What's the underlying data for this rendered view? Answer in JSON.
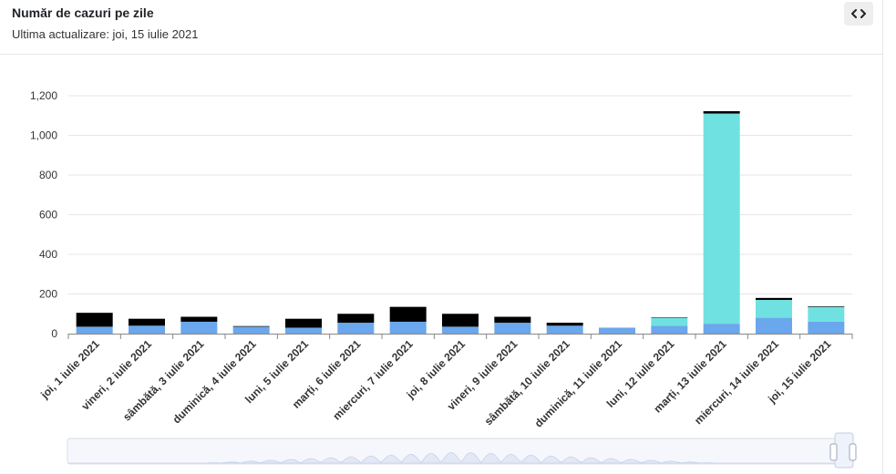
{
  "header": {
    "title": "Număr de cazuri pe zile",
    "subtitle": "Ultima actualizare: joi, 15 iulie 2021",
    "embed_icon": "code-icon"
  },
  "colors": {
    "blue": "#6aa7ec",
    "cyan": "#70e1e1",
    "black": "#000000",
    "grid": "#e6e6e6",
    "axis": "#333333"
  },
  "chart_data": {
    "type": "bar",
    "stacked": true,
    "title": "",
    "xlabel": "",
    "ylabel": "",
    "ylim": [
      0,
      1200
    ],
    "yticks": [
      0,
      200,
      400,
      600,
      800,
      1000,
      1200
    ],
    "ytick_labels": [
      "0",
      "200",
      "400",
      "600",
      "800",
      "1,000",
      "1,200"
    ],
    "categories": [
      "joi, 1 iulie 2021",
      "vineri, 2 iulie 2021",
      "sâmbătă, 3 iulie 2021",
      "duminică, 4 iulie 2021",
      "luni, 5 iulie 2021",
      "marți, 6 iulie 2021",
      "miercuri, 7 iulie 2021",
      "joi, 8 iulie 2021",
      "vineri, 9 iulie 2021",
      "sâmbătă, 10 iulie 2021",
      "duminică, 11 iulie 2021",
      "luni, 12 iulie 2021",
      "marți, 13 iulie 2021",
      "miercuri, 14 iulie 2021",
      "joi, 15 iulie 2021"
    ],
    "series": [
      {
        "name": "series-blue",
        "color": "#6aa7ec",
        "values": [
          35,
          40,
          60,
          35,
          30,
          55,
          60,
          35,
          55,
          40,
          30,
          40,
          50,
          80,
          60
        ]
      },
      {
        "name": "series-cyan",
        "color": "#70e1e1",
        "values": [
          0,
          0,
          0,
          0,
          0,
          0,
          0,
          0,
          0,
          0,
          0,
          40,
          1060,
          90,
          75
        ]
      },
      {
        "name": "series-black",
        "color": "#000000",
        "values": [
          70,
          35,
          25,
          3,
          45,
          45,
          75,
          65,
          30,
          15,
          0,
          2,
          12,
          10,
          3
        ]
      }
    ],
    "navigator": true
  }
}
